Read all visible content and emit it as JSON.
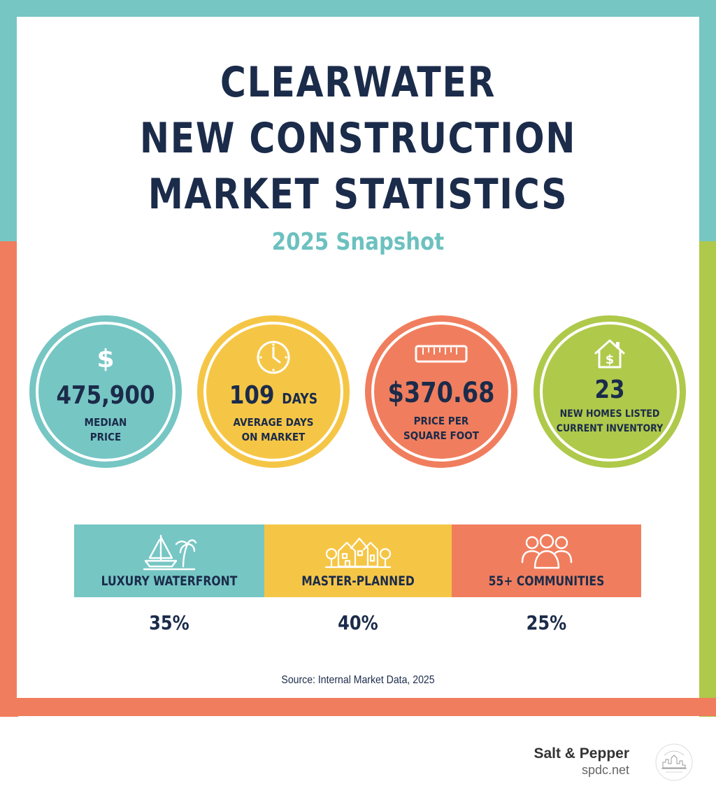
{
  "title_lines": [
    "CLEARWATER",
    "NEW CONSTRUCTION",
    "MARKET STATISTICS"
  ],
  "subtitle": "2025 Snapshot",
  "stats": [
    {
      "icon": "dollar-icon",
      "value": "475,900",
      "label": "MEDIAN\nPRICE",
      "color": "#76c6c4"
    },
    {
      "icon": "clock-icon",
      "value": "109",
      "value_unit": "DAYS",
      "label": "AVERAGE DAYS\nON MARKET",
      "color": "#f5c646"
    },
    {
      "icon": "ruler-icon",
      "value": "$370.68",
      "label": "PRICE PER\nSQUARE FOOT",
      "color": "#f07e5e"
    },
    {
      "icon": "house-dollar-icon",
      "value": "23",
      "label": "NEW HOMES LISTED\nCURRENT INVENTORY",
      "color": "#afc94b"
    }
  ],
  "segments": [
    {
      "icon": "sailboat-palm-icon",
      "label": "LUXURY WATERFRONT",
      "percent": "35%",
      "color": "#76c6c4"
    },
    {
      "icon": "houses-trees-icon",
      "label": "MASTER-PLANNED",
      "percent": "40%",
      "color": "#f5c646"
    },
    {
      "icon": "people-group-icon",
      "label": "55+ COMMUNITIES",
      "percent": "25%",
      "color": "#f07e5e"
    }
  ],
  "source": "Source: Internal Market Data, 2025",
  "brand": {
    "name": "Salt & Pepper",
    "site": "spdc.net",
    "logo_text": "SALT & PEPPER CONSTRUCTION"
  },
  "colors": {
    "navy": "#1b2b4a",
    "teal": "#76c6c4",
    "yellow": "#f5c646",
    "coral": "#f07e5e",
    "lime": "#afc94b"
  }
}
